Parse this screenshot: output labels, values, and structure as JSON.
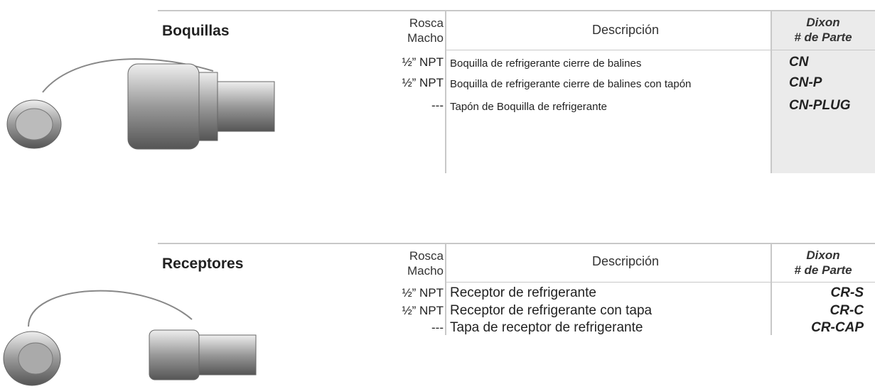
{
  "sections": [
    {
      "title": "Boquillas",
      "thread_header": [
        "Rosca",
        "Macho"
      ],
      "description_header": "Descripción",
      "part_header": [
        "Dixon",
        "# de Parte"
      ],
      "rows": [
        [
          "½” NPT",
          "Boquilla de refrigerante cierre de balines",
          "CN"
        ],
        [
          "½” NPT",
          "Boquilla de refrigerante cierre de balines con tapón",
          "CN-P"
        ],
        [
          "---",
          "Tapón de Boquilla de refrigerante",
          "CN-PLUG"
        ]
      ]
    },
    {
      "title": "Receptores",
      "thread_header": [
        "Rosca",
        "Macho"
      ],
      "description_header": "Descripción",
      "part_header": [
        "Dixon",
        "# de Parte"
      ],
      "rows": [
        [
          "½” NPT",
          "Receptor de refrigerante",
          "CR-S"
        ],
        [
          "½” NPT",
          "Receptor de refrigerante con tapa",
          "CR-C"
        ],
        [
          "---",
          "Tapa de receptor de refrigerante",
          "CR-CAP"
        ]
      ]
    }
  ]
}
